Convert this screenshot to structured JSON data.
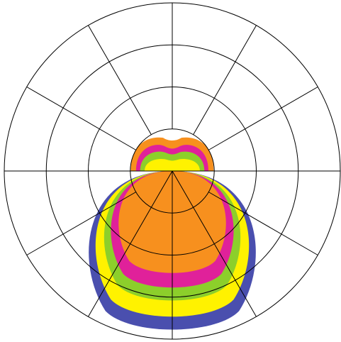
{
  "chart_data": {
    "type": "polar",
    "title": "",
    "grid": true,
    "angular_grid_step_deg": 30,
    "rings": 4,
    "legend": "none",
    "colors": {
      "grid": "#000000",
      "background": "#ffffff",
      "blue": "#4a4fae",
      "yellow": "#fff200",
      "green": "#8ccf2b",
      "magenta": "#e0219a",
      "orange": "#f7901e"
    },
    "series": [
      {
        "color_key": "blue",
        "lobe": "downward",
        "peak_radius_fraction": 0.98
      },
      {
        "color_key": "yellow",
        "lobe": "downward",
        "peak_radius_fraction": 0.9
      },
      {
        "color_key": "green",
        "lobe": "downward",
        "peak_radius_fraction": 0.8
      },
      {
        "color_key": "magenta",
        "lobe": "downward",
        "peak_radius_fraction": 0.72
      },
      {
        "color_key": "orange",
        "lobe": "downward",
        "peak_radius_fraction": 0.63
      },
      {
        "color_key": "orange",
        "lobe": "upward",
        "peak_radius_fraction": 0.22
      }
    ]
  }
}
